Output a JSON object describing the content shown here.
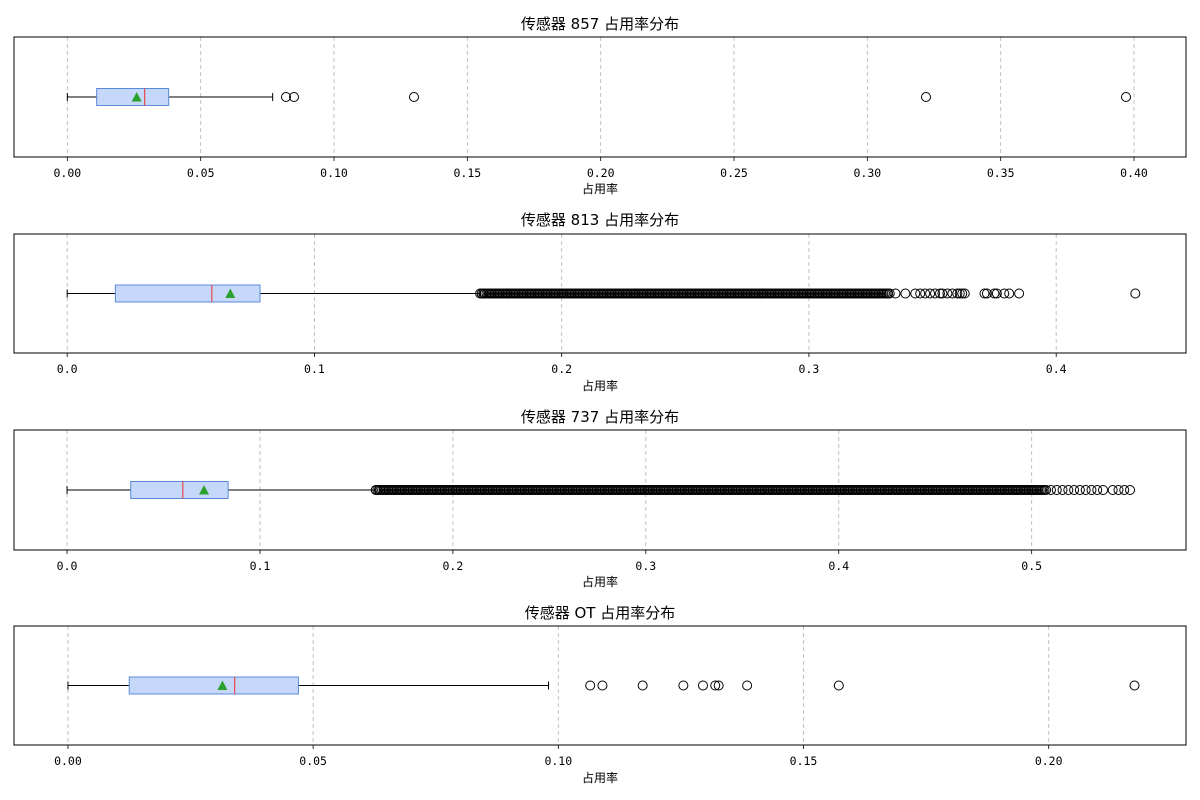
{
  "chart_data": [
    {
      "type": "boxplot",
      "orientation": "horizontal",
      "title": "传感器 857 占用率分布",
      "xlabel": "占用率",
      "xlim": [
        -0.02,
        0.4195
      ],
      "xticks": [
        0,
        0.05,
        0.1,
        0.15,
        0.2,
        0.25,
        0.3,
        0.35,
        0.4
      ],
      "xtick_labels": [
        "0.00",
        "0.05",
        "0.10",
        "0.15",
        "0.20",
        "0.25",
        "0.30",
        "0.35",
        "0.40"
      ],
      "grid": "x dashed",
      "box": {
        "whisker_low": 0.0,
        "q1": 0.011,
        "median": 0.029,
        "mean": 0.026,
        "q3": 0.038,
        "whisker_high": 0.077
      },
      "outliers": [
        0.082,
        0.085,
        0.13,
        0.322,
        0.397
      ],
      "outlier_band": null
    },
    {
      "type": "boxplot",
      "orientation": "horizontal",
      "title": "传感器 813 占用率分布",
      "xlabel": "占用率",
      "xlim": [
        -0.0215,
        0.4525
      ],
      "xticks": [
        0,
        0.1,
        0.2,
        0.3,
        0.4
      ],
      "xtick_labels": [
        "0.0",
        "0.1",
        "0.2",
        "0.3",
        "0.4"
      ],
      "grid": "x dashed",
      "box": {
        "whisker_low": 0.0,
        "q1": 0.0195,
        "median": 0.0585,
        "mean": 0.066,
        "q3": 0.078,
        "whisker_high": 0.167
      },
      "outliers": [
        0.335,
        0.339,
        0.343,
        0.345,
        0.347,
        0.349,
        0.351,
        0.353,
        0.354,
        0.356,
        0.358,
        0.36,
        0.361,
        0.362,
        0.363,
        0.371,
        0.372,
        0.375,
        0.376,
        0.379,
        0.381,
        0.385,
        0.432
      ],
      "outlier_band": {
        "from": 0.167,
        "to": 0.333,
        "density": "dense"
      }
    },
    {
      "type": "boxplot",
      "orientation": "horizontal",
      "title": "传感器 737 占用率分布",
      "xlabel": "占用率",
      "xlim": [
        -0.0275,
        0.58
      ],
      "xticks": [
        0,
        0.1,
        0.2,
        0.3,
        0.4,
        0.5
      ],
      "xtick_labels": [
        "0.0",
        "0.1",
        "0.2",
        "0.3",
        "0.4",
        "0.5"
      ],
      "grid": "x dashed",
      "box": {
        "whisker_low": 0.0,
        "q1": 0.033,
        "median": 0.06,
        "mean": 0.071,
        "q3": 0.0835,
        "whisker_high": 0.16
      },
      "outliers": [
        0.51,
        0.513,
        0.516,
        0.519,
        0.522,
        0.525,
        0.528,
        0.531,
        0.534,
        0.537,
        0.542,
        0.545,
        0.548,
        0.551
      ],
      "outlier_band": {
        "from": 0.16,
        "to": 0.508,
        "density": "dense"
      }
    },
    {
      "type": "boxplot",
      "orientation": "horizontal",
      "title": "传感器 OT 占用率分布",
      "xlabel": "占用率",
      "xlim": [
        -0.011,
        0.228
      ],
      "xticks": [
        0,
        0.05,
        0.1,
        0.15,
        0.2
      ],
      "xtick_labels": [
        "0.00",
        "0.05",
        "0.10",
        "0.15",
        "0.20"
      ],
      "grid": "x dashed",
      "box": {
        "whisker_low": 0.0,
        "q1": 0.0125,
        "median": 0.034,
        "mean": 0.0315,
        "q3": 0.047,
        "whisker_high": 0.098
      },
      "outliers": [
        0.1065,
        0.109,
        0.1172,
        0.1255,
        0.1295,
        0.132,
        0.1327,
        0.1385,
        0.1572,
        0.2175
      ],
      "outlier_band": null
    }
  ],
  "colors": {
    "box_fill": "#c5d8fa",
    "box_edge": "#5a8ad8",
    "median": "#e8474a",
    "mean_marker": "#2ca02c",
    "grid": "#bbbbbb",
    "axes": "#000000"
  }
}
